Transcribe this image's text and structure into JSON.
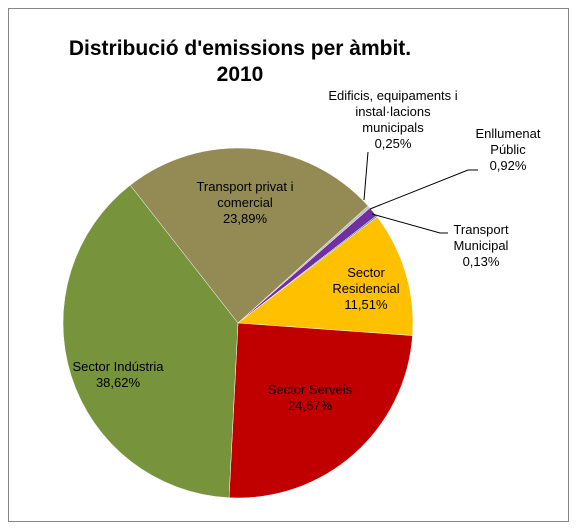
{
  "chart_data": {
    "type": "pie",
    "title": "Distribució d'emissions per àmbit. 2010",
    "categories": [
      "Edificis, equipaments i instal·lacions municipals",
      "Enllumenat Públic",
      "Transport Municipal",
      "Sector Residencial",
      "Sector Serveis",
      "Sector Indústria",
      "Transport privat i comercial"
    ],
    "values": [
      0.25,
      0.92,
      0.13,
      11.51,
      24.67,
      38.62,
      23.89
    ],
    "value_labels": [
      "0,25%",
      "0,92%",
      "0,13%",
      "11,51%",
      "24,67%",
      "38,62%",
      "23,89%"
    ],
    "colors": [
      "#bfbfbf",
      "#7030a0",
      "#4f81bd",
      "#ffc000",
      "#c00000",
      "#77933c",
      "#948a54"
    ]
  }
}
